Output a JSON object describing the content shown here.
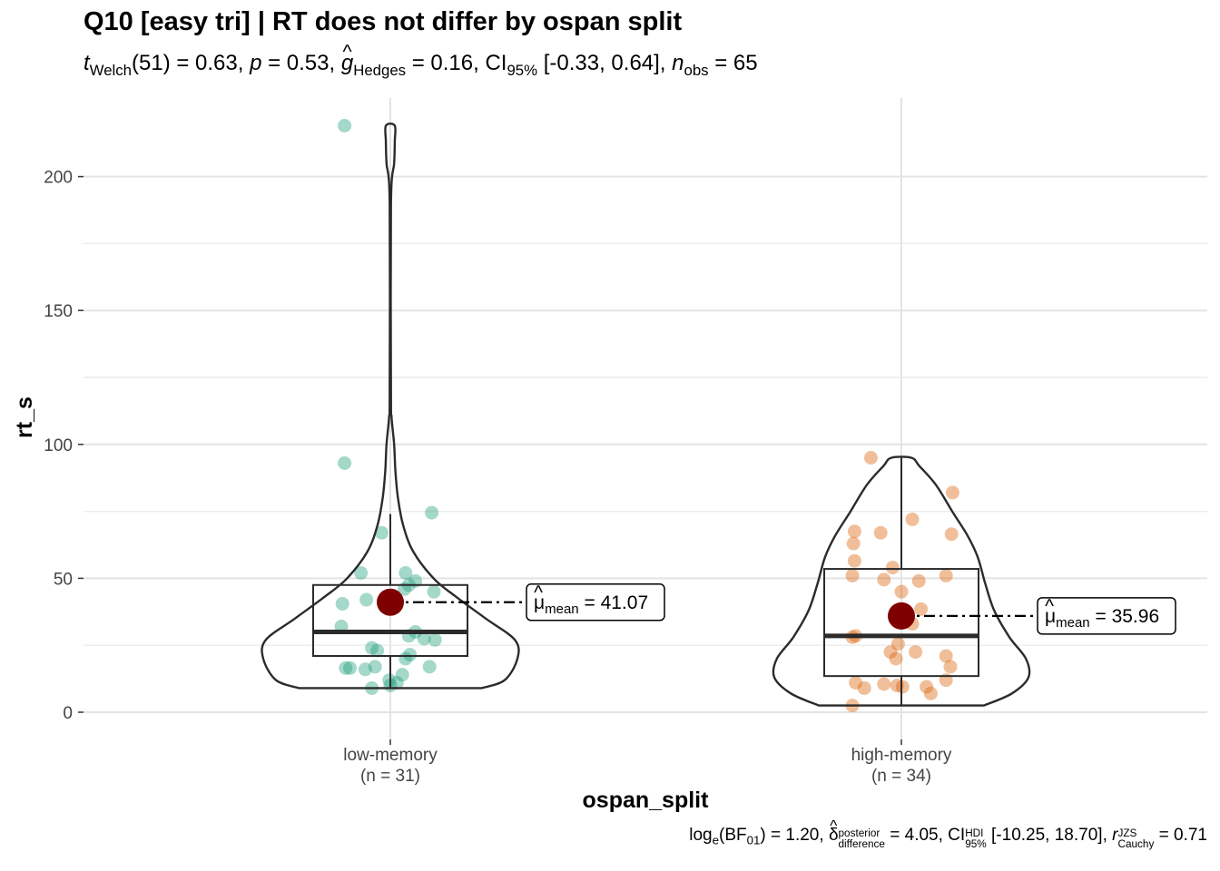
{
  "title": "Q10 [easy tri] | RT does not differ by ospan split",
  "subtitle": {
    "t_stat": "t",
    "t_sub": "Welch",
    "t_df": "(51) = 0.63, ",
    "p_sym": "p",
    "p_val": " = 0.53, ",
    "g_sym": "g",
    "g_sub": "Hedges",
    "g_val": " = 0.16, CI",
    "ci_sub": "95%",
    "ci_val": " [-0.33, 0.64], ",
    "n_sym": "n",
    "n_sub": "obs",
    "n_val": " = 65"
  },
  "caption": {
    "log_text": "log",
    "log_sub": "e",
    "bf_text": "(BF",
    "bf_sub": "01",
    "bf_val": ") = 1.20, ",
    "delta_sym": "δ",
    "delta_sup": "posterior",
    "delta_sub": "difference",
    "delta_val": " = 4.05, CI",
    "ci_sup": "HDI",
    "ci_sub": "95%",
    "ci_val": " [-10.25, 18.70], ",
    "r_sym": "r",
    "r_sup": "JZS",
    "r_sub": "Cauchy",
    "r_val": " = 0.71"
  },
  "chart_data": {
    "type": "violin-box-scatter",
    "xlabel": "ospan_split",
    "ylabel": "rt_s",
    "ylim": [
      -10,
      225
    ],
    "yticks": [
      0,
      50,
      100,
      150,
      200
    ],
    "grid": true,
    "categories": [
      "low-memory",
      "high-memory"
    ],
    "category_counts": [
      "(n = 31)",
      "(n = 34)"
    ],
    "colors": {
      "low-memory": "#1b9e77",
      "high-memory": "#d95f02",
      "mean_point": "#7f0000"
    },
    "groups": [
      {
        "name": "low-memory",
        "n_label": "(n = 31)",
        "mean": 41.07,
        "mean_label_sym": "μ",
        "mean_label_sub": "mean",
        "mean_label_val": " = 41.07",
        "box": {
          "q1": 21,
          "median": 30,
          "q3": 47.5,
          "whisker_low": 9,
          "whisker_high": 74
        },
        "violin_width": [
          [
            9,
            0.72
          ],
          [
            12,
            0.9
          ],
          [
            20,
            1.0
          ],
          [
            27,
            0.98
          ],
          [
            35,
            0.75
          ],
          [
            43,
            0.52
          ],
          [
            50,
            0.34
          ],
          [
            60,
            0.18
          ],
          [
            70,
            0.1
          ],
          [
            80,
            0.06
          ],
          [
            90,
            0.04
          ],
          [
            100,
            0.03
          ],
          [
            110,
            0.01
          ],
          [
            120,
            0.005
          ],
          [
            190,
            0.005
          ],
          [
            205,
            0.03
          ],
          [
            213,
            0.035
          ],
          [
            219,
            0.035
          ]
        ],
        "points": [
          [
            -0.42,
            219
          ],
          [
            -0.42,
            93
          ],
          [
            -0.08,
            67
          ],
          [
            0.38,
            74.5
          ],
          [
            -0.27,
            52
          ],
          [
            0.14,
            52
          ],
          [
            -0.22,
            42
          ],
          [
            -0.44,
            40.5
          ],
          [
            0.23,
            49
          ],
          [
            0.17,
            47.5
          ],
          [
            0.13,
            46
          ],
          [
            0.4,
            45
          ],
          [
            -0.45,
            32
          ],
          [
            0.23,
            30
          ],
          [
            0.17,
            28.5
          ],
          [
            0.31,
            27.5
          ],
          [
            0.41,
            27
          ],
          [
            -0.17,
            24
          ],
          [
            -0.12,
            23
          ],
          [
            0.18,
            21.5
          ],
          [
            0.14,
            20
          ],
          [
            -0.37,
            16.5
          ],
          [
            -0.41,
            16.5
          ],
          [
            -0.14,
            17
          ],
          [
            0.36,
            17
          ],
          [
            -0.23,
            16
          ],
          [
            0.11,
            14
          ],
          [
            -0.01,
            12
          ],
          [
            0.06,
            11
          ],
          [
            -0.17,
            9
          ],
          [
            0.0,
            10
          ]
        ]
      },
      {
        "name": "high-memory",
        "n_label": "(n = 34)",
        "mean": 35.96,
        "mean_label_sym": "μ",
        "mean_label_sub": "mean",
        "mean_label_val": " = 35.96",
        "box": {
          "q1": 13.5,
          "median": 28.5,
          "q3": 53.5,
          "whisker_low": 2.5,
          "whisker_high": 95
        },
        "violin_width": [
          [
            2.5,
            0.65
          ],
          [
            7,
            0.87
          ],
          [
            13,
            1.0
          ],
          [
            20,
            0.98
          ],
          [
            28,
            0.85
          ],
          [
            38,
            0.73
          ],
          [
            48,
            0.66
          ],
          [
            58,
            0.6
          ],
          [
            66,
            0.52
          ],
          [
            75,
            0.4
          ],
          [
            85,
            0.27
          ],
          [
            92,
            0.14
          ],
          [
            95,
            0.08
          ]
        ],
        "points": [
          [
            -0.28,
            95
          ],
          [
            0.47,
            82
          ],
          [
            0.1,
            72
          ],
          [
            -0.43,
            67.5
          ],
          [
            -0.19,
            67
          ],
          [
            -0.44,
            63
          ],
          [
            0.46,
            66.5
          ],
          [
            -0.43,
            56.5
          ],
          [
            -0.08,
            54
          ],
          [
            -0.45,
            51
          ],
          [
            -0.16,
            49.5
          ],
          [
            0.16,
            49
          ],
          [
            0.41,
            51
          ],
          [
            0.0,
            45
          ],
          [
            0.18,
            38.5
          ],
          [
            0.05,
            36
          ],
          [
            0.1,
            33
          ],
          [
            -0.45,
            28
          ],
          [
            -0.42,
            28.5
          ],
          [
            -0.03,
            25.5
          ],
          [
            0.41,
            21
          ],
          [
            0.45,
            17
          ],
          [
            -0.1,
            22.5
          ],
          [
            0.13,
            22.5
          ],
          [
            -0.05,
            20
          ],
          [
            0.41,
            12
          ],
          [
            -0.42,
            11
          ],
          [
            -0.16,
            10.5
          ],
          [
            -0.04,
            10
          ],
          [
            0.01,
            9.5
          ],
          [
            0.23,
            9.5
          ],
          [
            -0.34,
            9
          ],
          [
            0.27,
            7
          ],
          [
            -0.45,
            2.5
          ]
        ]
      }
    ]
  }
}
